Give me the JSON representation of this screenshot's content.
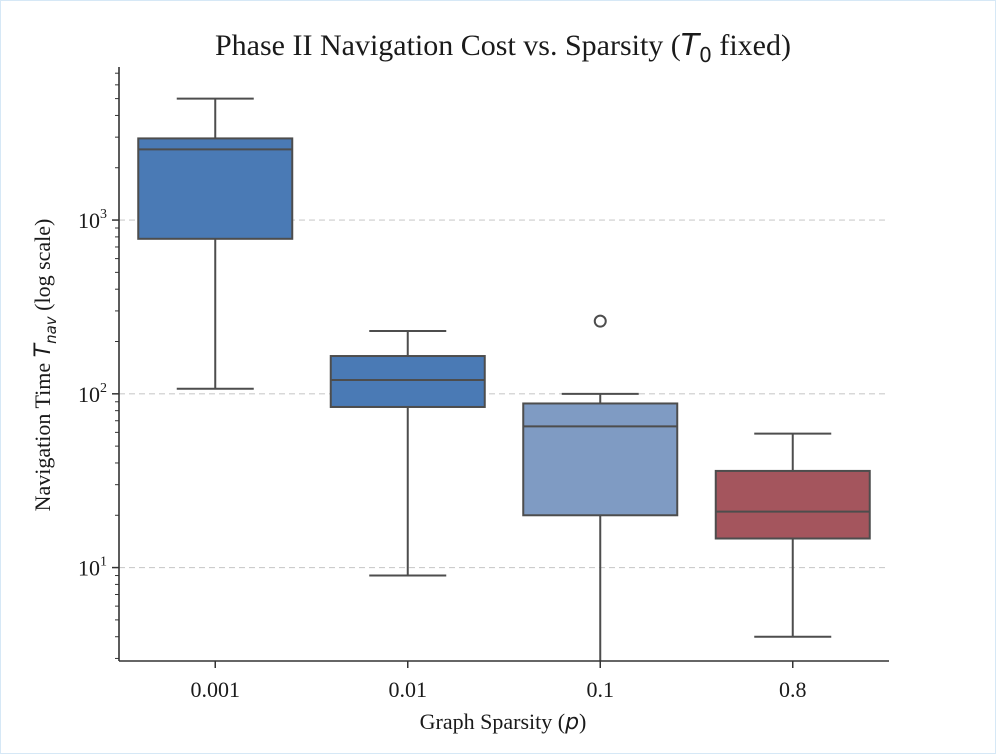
{
  "chart_data": {
    "type": "box",
    "title": "Phase II Navigation Cost vs. Sparsity (T0 fixed)",
    "title_parts": {
      "pre": "Phase II Navigation Cost vs. Sparsity (",
      "var": "T",
      "sub": "0",
      "post": " fixed)"
    },
    "xlabel": "Graph Sparsity (p)",
    "xlabel_parts": {
      "pre": "Graph Sparsity (",
      "var": "p",
      "post": ")"
    },
    "ylabel": "Navigation Time T_nav (log scale)",
    "ylabel_parts": {
      "pre": "Navigation Time ",
      "var": "T",
      "sub": "nav",
      "post": " (log scale)"
    },
    "y_scale": "log",
    "ylim": [
      2.9,
      7600
    ],
    "y_ticks": [
      {
        "value": 10,
        "base": "10",
        "exp": "1"
      },
      {
        "value": 100,
        "base": "10",
        "exp": "2"
      },
      {
        "value": 1000,
        "base": "10",
        "exp": "3"
      }
    ],
    "grid": "y-major-dashed",
    "categories": [
      "0.001",
      "0.01",
      "0.1",
      "0.8"
    ],
    "boxes": [
      {
        "category": "0.001",
        "whisker_low": 107,
        "q1": 780,
        "median": 2550,
        "q3": 2950,
        "whisker_high": 5000,
        "outliers": [],
        "color": "#4a7ab5"
      },
      {
        "category": "0.01",
        "whisker_low": 9,
        "q1": 84,
        "median": 120,
        "q3": 165,
        "whisker_high": 230,
        "outliers": [],
        "color": "#4a7ab5"
      },
      {
        "category": "0.1",
        "whisker_low": 2.9,
        "q1": 20,
        "median": 65,
        "q3": 88,
        "whisker_high": 100,
        "outliers": [
          262
        ],
        "color": "#7f9bc3"
      },
      {
        "category": "0.8",
        "whisker_low": 4,
        "q1": 14.7,
        "median": 21,
        "q3": 36,
        "whisker_high": 59,
        "outliers": [],
        "color": "#a4555d"
      }
    ]
  }
}
